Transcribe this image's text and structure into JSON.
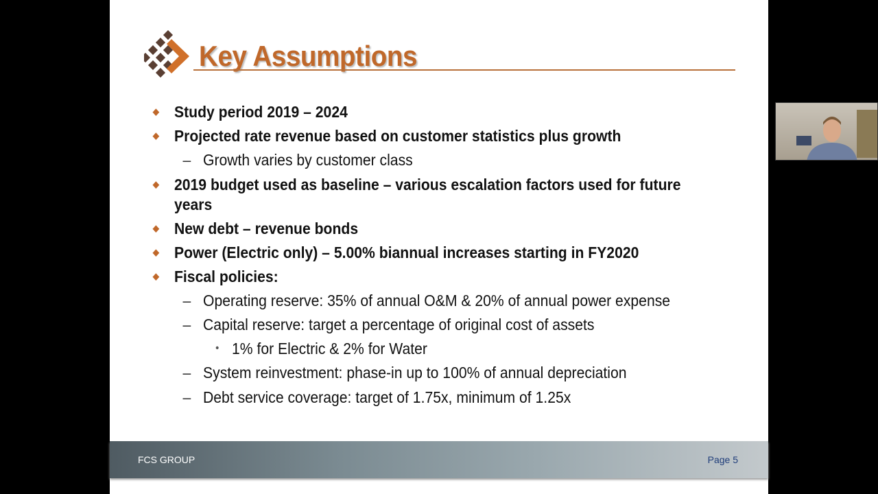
{
  "slide": {
    "title": "Key Assumptions",
    "items": [
      {
        "level": 1,
        "text": "Study period 2019 – 2024"
      },
      {
        "level": 1,
        "text": "Projected rate revenue based on customer statistics plus growth"
      },
      {
        "level": 2,
        "text": "Growth varies by customer class"
      },
      {
        "level": 1,
        "text": "2019 budget used as baseline – various escalation factors used for future"
      },
      {
        "level": 0,
        "text": "years"
      },
      {
        "level": 1,
        "text": "New debt – revenue bonds"
      },
      {
        "level": 1,
        "text": "Power (Electric only) – 5.00% biannual increases starting in FY2020"
      },
      {
        "level": 1,
        "text": "Fiscal policies:"
      },
      {
        "level": 2,
        "text": "Operating reserve: 35% of annual O&M & 20% of annual power expense"
      },
      {
        "level": 2,
        "text": "Capital reserve: target a percentage of original cost of assets"
      },
      {
        "level": 3,
        "text": "1% for Electric & 2% for Water"
      },
      {
        "level": 2,
        "text": "System reinvestment: phase-in up to 100% of annual depreciation"
      },
      {
        "level": 2,
        "text": "Debt service coverage: target of 1.75x, minimum of 1.25x"
      }
    ],
    "footer_left": "FCS GROUP",
    "footer_right": "Page 5"
  },
  "colors": {
    "accent": "#c0682a",
    "logo_dark": "#5a3f33"
  }
}
